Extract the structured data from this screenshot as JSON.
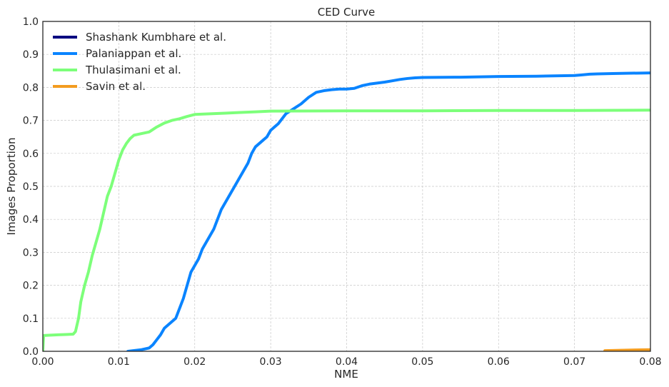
{
  "chart_data": {
    "type": "line",
    "title": "CED Curve",
    "xlabel": "NME",
    "ylabel": "Images Proportion",
    "xlim": [
      0,
      0.08
    ],
    "ylim": [
      0,
      1
    ],
    "xticks": [
      "0.00",
      "0.01",
      "0.02",
      "0.03",
      "0.04",
      "0.05",
      "0.06",
      "0.07",
      "0.08"
    ],
    "yticks": [
      "0.0",
      "0.1",
      "0.2",
      "0.3",
      "0.4",
      "0.5",
      "0.6",
      "0.7",
      "0.8",
      "0.9",
      "1.0"
    ],
    "grid": true,
    "legend_position": "top-left",
    "series": [
      {
        "name": "Shashank Kumbhare et al.",
        "color": "#000080",
        "x": [],
        "y": []
      },
      {
        "name": "Palaniappan et al.",
        "color": "#0a84ff",
        "x": [
          0.0112,
          0.013,
          0.014,
          0.0145,
          0.015,
          0.0155,
          0.016,
          0.0165,
          0.017,
          0.0175,
          0.018,
          0.0185,
          0.019,
          0.0195,
          0.02,
          0.0205,
          0.021,
          0.0215,
          0.022,
          0.0225,
          0.023,
          0.0235,
          0.024,
          0.0245,
          0.025,
          0.0255,
          0.026,
          0.0265,
          0.027,
          0.0275,
          0.028,
          0.0285,
          0.029,
          0.0295,
          0.03,
          0.031,
          0.032,
          0.033,
          0.034,
          0.035,
          0.036,
          0.037,
          0.038,
          0.039,
          0.04,
          0.041,
          0.042,
          0.043,
          0.044,
          0.045,
          0.046,
          0.047,
          0.048,
          0.049,
          0.05,
          0.055,
          0.06,
          0.065,
          0.07,
          0.071,
          0.072,
          0.073,
          0.075,
          0.08
        ],
        "y": [
          0.0,
          0.005,
          0.01,
          0.02,
          0.035,
          0.05,
          0.07,
          0.08,
          0.09,
          0.1,
          0.13,
          0.16,
          0.2,
          0.24,
          0.26,
          0.28,
          0.31,
          0.33,
          0.35,
          0.37,
          0.4,
          0.43,
          0.45,
          0.47,
          0.49,
          0.51,
          0.53,
          0.55,
          0.57,
          0.6,
          0.62,
          0.63,
          0.64,
          0.65,
          0.67,
          0.69,
          0.72,
          0.735,
          0.75,
          0.77,
          0.785,
          0.79,
          0.793,
          0.795,
          0.795,
          0.797,
          0.805,
          0.81,
          0.813,
          0.816,
          0.82,
          0.824,
          0.827,
          0.829,
          0.83,
          0.831,
          0.833,
          0.834,
          0.836,
          0.838,
          0.84,
          0.841,
          0.842,
          0.844
        ]
      },
      {
        "name": "Thulasimani et al.",
        "color": "#7dff7a",
        "x": [
          0.0,
          0.0001,
          0.001,
          0.002,
          0.003,
          0.004,
          0.0043,
          0.0047,
          0.005,
          0.0055,
          0.006,
          0.0065,
          0.007,
          0.0075,
          0.008,
          0.0085,
          0.009,
          0.0095,
          0.01,
          0.0105,
          0.011,
          0.0115,
          0.012,
          0.013,
          0.014,
          0.015,
          0.016,
          0.017,
          0.018,
          0.019,
          0.02,
          0.022,
          0.024,
          0.026,
          0.028,
          0.03,
          0.04,
          0.05,
          0.06,
          0.07,
          0.08
        ],
        "y": [
          0.0,
          0.048,
          0.049,
          0.05,
          0.051,
          0.052,
          0.06,
          0.1,
          0.15,
          0.2,
          0.24,
          0.29,
          0.33,
          0.37,
          0.42,
          0.47,
          0.5,
          0.54,
          0.58,
          0.61,
          0.63,
          0.645,
          0.655,
          0.66,
          0.665,
          0.68,
          0.692,
          0.7,
          0.705,
          0.712,
          0.718,
          0.72,
          0.722,
          0.724,
          0.726,
          0.728,
          0.729,
          0.729,
          0.73,
          0.73,
          0.731
        ]
      },
      {
        "name": "Savin et al.",
        "color": "#f39c1f",
        "x": [
          0.074,
          0.076,
          0.078,
          0.08
        ],
        "y": [
          0.002,
          0.003,
          0.004,
          0.005
        ]
      }
    ]
  }
}
